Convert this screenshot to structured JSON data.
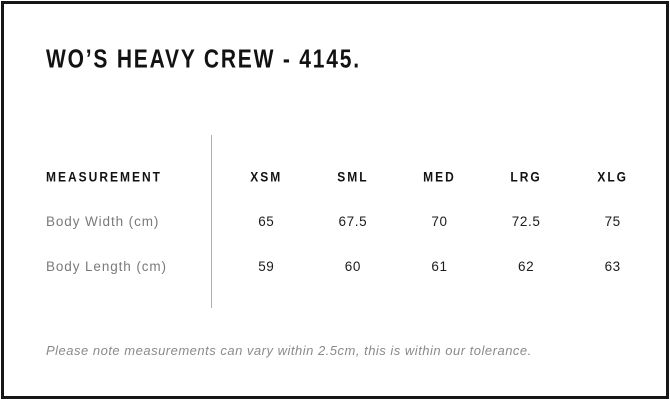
{
  "title": "WO’S HEAVY CREW - 4145.",
  "size_table": {
    "measurement_header": "MEASUREMENT",
    "size_headers": [
      "XSM",
      "SML",
      "MED",
      "LRG",
      "XLG"
    ],
    "rows": [
      {
        "label": "Body Width (cm)",
        "values": [
          "65",
          "67.5",
          "70",
          "72.5",
          "75"
        ]
      },
      {
        "label": "Body Length (cm)",
        "values": [
          "59",
          "60",
          "61",
          "62",
          "63"
        ]
      }
    ]
  },
  "note": "Please note measurements can vary within 2.5cm, this is within our tolerance.",
  "chart_data": {
    "type": "table",
    "title": "WO’S HEAVY CREW - 4145.",
    "columns": [
      "MEASUREMENT",
      "XSM",
      "SML",
      "MED",
      "LRG",
      "XLG"
    ],
    "rows": [
      [
        "Body Width (cm)",
        65,
        67.5,
        70,
        72.5,
        75
      ],
      [
        "Body Length (cm)",
        59,
        60,
        61,
        62,
        63
      ]
    ],
    "units": "cm",
    "note": "Please note measurements can vary within 2.5cm, this is within our tolerance."
  },
  "colors": {
    "border": "#161616",
    "heading": "#121212",
    "row_label": "#7a7a7a",
    "value": "#1c1c1c",
    "note": "#8a8a8a",
    "divider": "#b0b0b0",
    "bg": "#ffffff"
  }
}
